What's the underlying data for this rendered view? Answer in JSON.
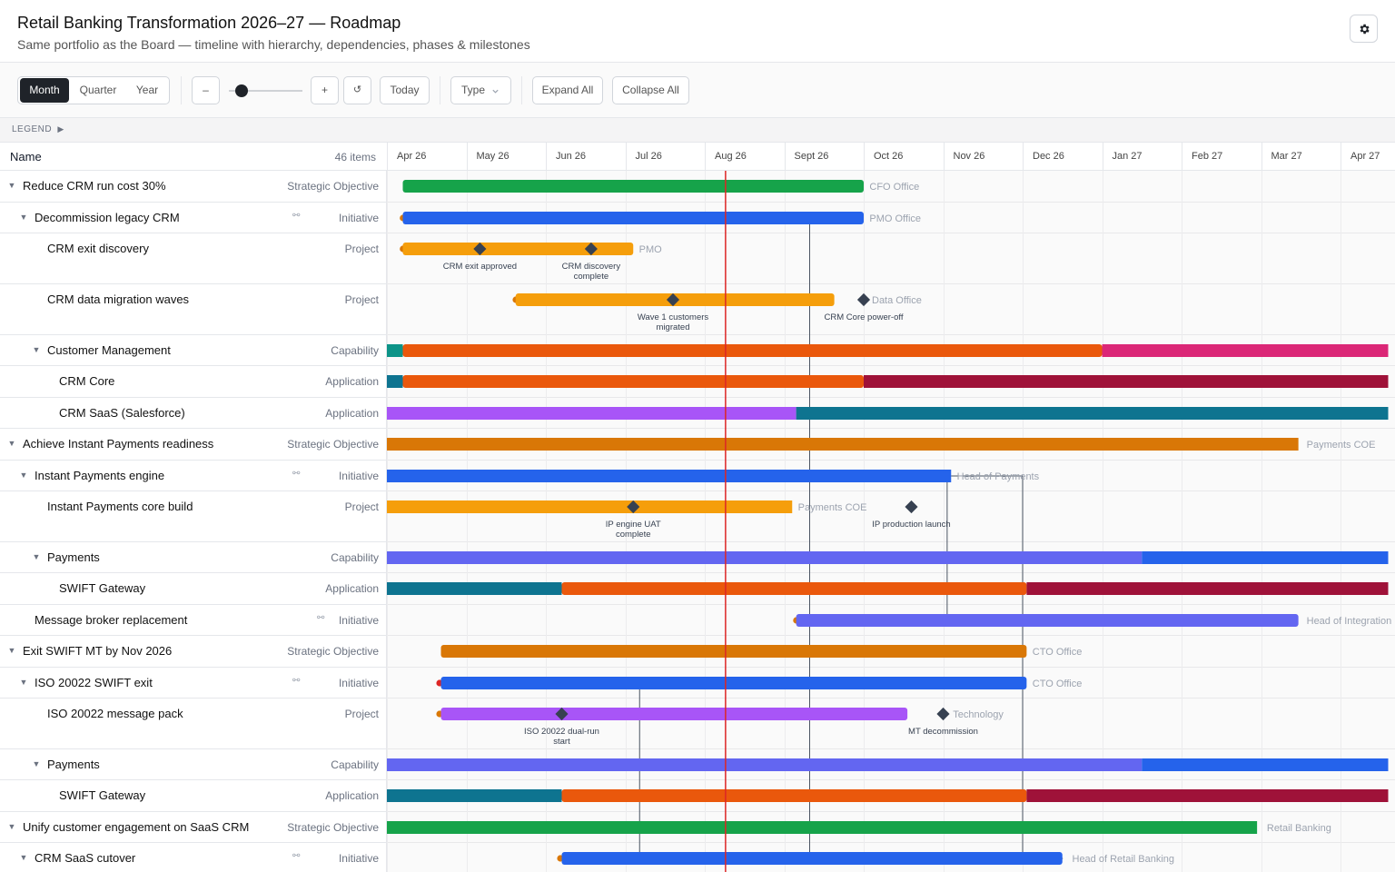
{
  "header": {
    "title": "Retail Banking Transformation 2026–27 — Roadmap",
    "subtitle": "Same portfolio as the Board — timeline with hierarchy, dependencies, phases & milestones",
    "settings_icon": "gear-icon"
  },
  "toolbar": {
    "scale": {
      "options": [
        "Month",
        "Quarter",
        "Year"
      ],
      "selected": "Month"
    },
    "zoom_out_label": "–",
    "zoom_in_label": "+",
    "reset_label": "↺",
    "zoom_level": 0.1,
    "today_label": "Today",
    "type_label": "Type",
    "expand_label": "Expand All",
    "collapse_label": "Collapse All"
  },
  "legend": {
    "label": "LEGEND",
    "toggle_icon": "caret-right-icon"
  },
  "grid": {
    "name_header": "Name",
    "count": "46 items"
  },
  "timeline": {
    "months": [
      "Apr 26",
      "May 26",
      "Jun 26",
      "Jul 26",
      "Aug 26",
      "Sept 26",
      "Oct 26",
      "Nov 26",
      "Dec 26",
      "Jan 27",
      "Feb 27",
      "Mar 27",
      "Apr 27"
    ],
    "today_month": 4.25
  },
  "colors": {
    "today": "#dc2626",
    "objective": "#d97706",
    "objective_green": "#16a34a",
    "initiative": "#2563eb",
    "project": "#f59e0b",
    "capability": "#6366f1",
    "teal": "#0e7490",
    "orange": "#ea580c",
    "pink": "#db2777",
    "crimson": "#9f1239",
    "purple": "#a855f7",
    "milestone": "#374151"
  },
  "rows": [
    {
      "name": "Reduce CRM run cost 30%",
      "type": "Strategic Objective",
      "level": 0,
      "expanded": true,
      "height": 35,
      "bars": [
        {
          "start": 0.2,
          "end": 6.0,
          "color": "#16a34a"
        }
      ],
      "owner": "CFO Office",
      "owner_at": 6.05
    },
    {
      "name": "Decommission legacy CRM",
      "type": "Initiative",
      "level": 1,
      "expanded": true,
      "dep": true,
      "height": 34,
      "dot": {
        "at": 0.1,
        "color": "#d97706"
      },
      "bars": [
        {
          "start": 0.2,
          "end": 6.0,
          "color": "#2563eb"
        }
      ],
      "owner": "PMO Office",
      "owner_at": 6.05
    },
    {
      "name": "CRM exit discovery",
      "type": "Project",
      "level": 2,
      "height": 56,
      "dot": {
        "at": 0.1,
        "color": "#d97706"
      },
      "bars": [
        {
          "start": 0.2,
          "end": 3.1,
          "color": "#f59e0b"
        }
      ],
      "owner": "PMO",
      "owner_at": 3.15,
      "milestones": [
        {
          "at": 1.17,
          "label": [
            "CRM exit approved"
          ]
        },
        {
          "at": 2.57,
          "label": [
            "CRM discovery",
            "complete"
          ]
        }
      ]
    },
    {
      "name": "CRM data migration waves",
      "type": "Project",
      "level": 2,
      "height": 56,
      "dot": {
        "at": 1.52,
        "color": "#d97706"
      },
      "bars": [
        {
          "start": 1.62,
          "end": 5.63,
          "color": "#f59e0b"
        }
      ],
      "owner": "Data Office",
      "owner_at": 6.08,
      "milestones": [
        {
          "at": 3.6,
          "label": [
            "Wave 1 customers",
            "migrated"
          ]
        },
        {
          "at": 6.0,
          "label": [
            "CRM Core power-off"
          ]
        }
      ]
    },
    {
      "name": "Customer Management",
      "type": "Capability",
      "level": 2,
      "expanded": true,
      "height": 34,
      "bars": [
        {
          "start": 0,
          "end": 0.2,
          "color": "#0d9488"
        },
        {
          "start": 0.2,
          "end": 9.0,
          "color": "#ea580c"
        },
        {
          "start": 9.0,
          "end": 12.6,
          "color": "#db2777"
        }
      ]
    },
    {
      "name": "CRM Core",
      "type": "Application",
      "level": 3,
      "height": 35,
      "bars": [
        {
          "start": 0,
          "end": 0.2,
          "color": "#0e7490"
        },
        {
          "start": 0.2,
          "end": 6.0,
          "color": "#ea580c"
        },
        {
          "start": 6.0,
          "end": 12.6,
          "color": "#9f1239"
        }
      ]
    },
    {
      "name": "CRM SaaS (Salesforce)",
      "type": "Application",
      "level": 3,
      "height": 34,
      "bars": [
        {
          "start": 0,
          "end": 5.15,
          "color": "#a855f7"
        },
        {
          "start": 5.15,
          "end": 12.6,
          "color": "#0e7490"
        }
      ]
    },
    {
      "name": "Achieve Instant Payments readiness",
      "type": "Strategic Objective",
      "level": 0,
      "expanded": true,
      "height": 35,
      "bars": [
        {
          "start": 0,
          "end": 11.47,
          "color": "#d97706"
        }
      ],
      "owner": "Payments COE",
      "owner_at": 11.55
    },
    {
      "name": "Instant Payments engine",
      "type": "Initiative",
      "level": 1,
      "expanded": true,
      "dep": true,
      "height": 34,
      "bars": [
        {
          "start": 0,
          "end": 7.1,
          "color": "#2563eb"
        }
      ],
      "owner": "Head of Payments",
      "owner_at": 7.15
    },
    {
      "name": "Instant Payments core build",
      "type": "Project",
      "level": 2,
      "height": 56,
      "bars": [
        {
          "start": 0,
          "end": 5.1,
          "color": "#f59e0b"
        }
      ],
      "owner": "Payments COE",
      "owner_at": 5.15,
      "milestones": [
        {
          "at": 3.1,
          "label": [
            "IP engine UAT",
            "complete"
          ]
        },
        {
          "at": 6.6,
          "label": [
            "IP production launch"
          ]
        }
      ]
    },
    {
      "name": "Payments",
      "type": "Capability",
      "level": 2,
      "expanded": true,
      "height": 34,
      "bars": [
        {
          "start": 0,
          "end": 9.5,
          "color": "#6366f1"
        },
        {
          "start": 9.5,
          "end": 12.6,
          "color": "#2563eb"
        }
      ]
    },
    {
      "name": "SWIFT Gateway",
      "type": "Application",
      "level": 3,
      "height": 35,
      "bars": [
        {
          "start": 0,
          "end": 2.2,
          "color": "#0e7490"
        },
        {
          "start": 2.2,
          "end": 8.05,
          "color": "#ea580c"
        },
        {
          "start": 8.05,
          "end": 12.6,
          "color": "#9f1239"
        }
      ]
    },
    {
      "name": "Message broker replacement",
      "type": "Initiative",
      "level": 1,
      "dep": true,
      "height": 34,
      "dot": {
        "at": 5.05,
        "color": "#d97706"
      },
      "bars": [
        {
          "start": 5.15,
          "end": 11.47,
          "color": "#6366f1"
        }
      ],
      "owner": "Head of Integration",
      "owner_at": 11.55
    },
    {
      "name": "Exit SWIFT MT by Nov 2026",
      "type": "Strategic Objective",
      "level": 0,
      "expanded": true,
      "height": 35,
      "bars": [
        {
          "start": 0.68,
          "end": 8.05,
          "color": "#d97706"
        }
      ],
      "owner": "CTO Office",
      "owner_at": 8.1
    },
    {
      "name": "ISO 20022 SWIFT exit",
      "type": "Initiative",
      "level": 1,
      "expanded": true,
      "dep": true,
      "height": 34,
      "dot": {
        "at": 0.56,
        "color": "#dc2626"
      },
      "bars": [
        {
          "start": 0.68,
          "end": 8.05,
          "color": "#2563eb"
        }
      ],
      "owner": "CTO Office",
      "owner_at": 8.1
    },
    {
      "name": "ISO 20022 message pack",
      "type": "Project",
      "level": 2,
      "height": 56,
      "dot": {
        "at": 0.56,
        "color": "#d97706"
      },
      "bars": [
        {
          "start": 0.68,
          "end": 6.55,
          "color": "#a855f7"
        }
      ],
      "owner": "Technology",
      "owner_at": 7.1,
      "milestones": [
        {
          "at": 2.2,
          "label": [
            "ISO 20022 dual-run",
            "start"
          ]
        },
        {
          "at": 7.0,
          "label": [
            "MT decommission"
          ]
        }
      ]
    },
    {
      "name": "Payments",
      "type": "Capability",
      "level": 2,
      "expanded": true,
      "height": 34,
      "bars": [
        {
          "start": 0,
          "end": 9.5,
          "color": "#6366f1"
        },
        {
          "start": 9.5,
          "end": 12.6,
          "color": "#2563eb"
        }
      ]
    },
    {
      "name": "SWIFT Gateway",
      "type": "Application",
      "level": 3,
      "height": 35,
      "bars": [
        {
          "start": 0,
          "end": 2.2,
          "color": "#0e7490"
        },
        {
          "start": 2.2,
          "end": 8.05,
          "color": "#ea580c"
        },
        {
          "start": 8.05,
          "end": 12.6,
          "color": "#9f1239"
        }
      ]
    },
    {
      "name": "Unify customer engagement on SaaS CRM",
      "type": "Strategic Objective",
      "level": 0,
      "expanded": true,
      "height": 34,
      "bars": [
        {
          "start": 0,
          "end": 10.95,
          "color": "#16a34a"
        }
      ],
      "owner": "Retail Banking",
      "owner_at": 11.05
    },
    {
      "name": "CRM SaaS cutover",
      "type": "Initiative",
      "level": 1,
      "expanded": true,
      "dep": true,
      "height": 35,
      "dot": {
        "at": 2.08,
        "color": "#d97706"
      },
      "bars": [
        {
          "start": 2.2,
          "end": 8.5,
          "color": "#2563eb"
        }
      ],
      "owner": "Head of Retail Banking",
      "owner_at": 8.6
    }
  ],
  "dependencies": [
    {
      "from_row": 1,
      "from_at": 6.0,
      "via_x": 5.32,
      "to_row": 19,
      "to_at": 5.32,
      "arrow_end": true
    },
    {
      "from_row": 8,
      "from_at": 7.1,
      "via_x": 7.05,
      "to_row": 12,
      "to_at": 8.2,
      "arrow_end": true
    },
    {
      "from_row": 8,
      "from_at": 7.1,
      "via_x": 8.0,
      "to_row": 19,
      "to_at": 8.5,
      "arrow_end": true
    },
    {
      "from_row": 14,
      "from_at": 4.3,
      "via_x": 3.18,
      "to_row": 19,
      "to_at": 3.18,
      "arrow_end": false
    }
  ]
}
